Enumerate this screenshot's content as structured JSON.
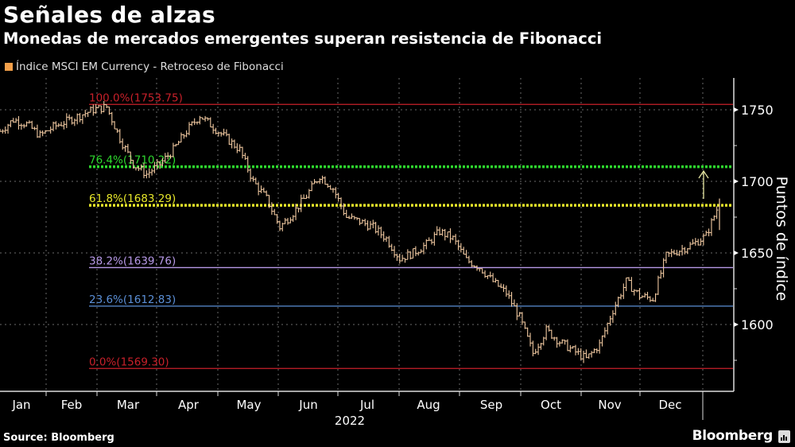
{
  "header": {
    "title": "Señales de alzas",
    "subtitle": "Monedas de mercados emergentes superan resistencia de Fibonacci",
    "legend_label": "Índice MSCI EM Currency - Retroceso de Fibonacci",
    "legend_color": "#f5a04a"
  },
  "footer": {
    "source": "Source: Bloomberg",
    "brand": "Bloomberg"
  },
  "colors": {
    "price": "#f0c8a0",
    "fib_100": "#c8202a",
    "fib_76": "#2ed82e",
    "fib_61": "#e6e62a",
    "fib_38": "#b89ae8",
    "fib_23": "#5b8fd6",
    "fib_0": "#c8202a",
    "arrow": "#e6e6a0",
    "grid": "#6a6a6a"
  },
  "chart_data": {
    "type": "line",
    "title": "Señales de alzas",
    "subtitle": "Monedas de mercados emergentes superan resistencia de Fibonacci",
    "xlabel": "2022",
    "ylabel": "Puntos de índice",
    "ylim": [
      1560,
      1770
    ],
    "yticks": [
      1600,
      1650,
      1700,
      1750
    ],
    "xticks": [
      "Jan",
      "Feb",
      "Mar",
      "Apr",
      "May",
      "Jun",
      "Jul",
      "Aug",
      "Sep",
      "Oct",
      "Nov",
      "Dec"
    ],
    "grid": true,
    "legend_position": "top-left",
    "series": [
      {
        "name": "Índice MSCI EM Currency",
        "x": [
          "Jan 1",
          "Jan 7",
          "Jan 14",
          "Jan 21",
          "Jan 28",
          "Feb 4",
          "Feb 11",
          "Feb 18",
          "Feb 24",
          "Mar 1",
          "Mar 7",
          "Mar 14",
          "Mar 21",
          "Mar 28",
          "Apr 4",
          "Apr 11",
          "Apr 18",
          "Apr 25",
          "May 2",
          "May 9",
          "May 16",
          "May 23",
          "May 30",
          "Jun 6",
          "Jun 13",
          "Jun 20",
          "Jun 27",
          "Jul 4",
          "Jul 11",
          "Jul 18",
          "Jul 25",
          "Aug 1",
          "Aug 8",
          "Aug 15",
          "Aug 22",
          "Aug 29",
          "Sep 5",
          "Sep 12",
          "Sep 19",
          "Sep 26",
          "Oct 3",
          "Oct 10",
          "Oct 17",
          "Oct 24",
          "Oct 31",
          "Nov 7",
          "Nov 10",
          "Nov 14",
          "Nov 21",
          "Nov 28",
          "Dec 5",
          "Dec 12",
          "Dec 19",
          "Dec 26",
          "Dec 30"
        ],
        "values": [
          1735,
          1743,
          1740,
          1732,
          1738,
          1742,
          1746,
          1750,
          1752,
          1730,
          1712,
          1705,
          1712,
          1722,
          1735,
          1746,
          1738,
          1730,
          1722,
          1700,
          1688,
          1668,
          1678,
          1690,
          1704,
          1695,
          1675,
          1672,
          1668,
          1660,
          1646,
          1650,
          1656,
          1665,
          1660,
          1645,
          1640,
          1630,
          1622,
          1605,
          1580,
          1596,
          1588,
          1582,
          1576,
          1586,
          1610,
          1630,
          1620,
          1618,
          1648,
          1652,
          1656,
          1662,
          1685
        ]
      }
    ],
    "fibonacci_levels": [
      {
        "label": "100.0%(1753.75)",
        "pct": 100.0,
        "value": 1753.75
      },
      {
        "label": "76.4%(1710.22)",
        "pct": 76.4,
        "value": 1710.22
      },
      {
        "label": "61.8%(1683.29)",
        "pct": 61.8,
        "value": 1683.29
      },
      {
        "label": "38.2%(1639.76)",
        "pct": 38.2,
        "value": 1639.76
      },
      {
        "label": "23.6%(1612.83)",
        "pct": 23.6,
        "value": 1612.83
      },
      {
        "label": "0.0%(1569.30)",
        "pct": 0.0,
        "value": 1569.3
      }
    ],
    "annotations": [
      "Upward arrow near late December pointing toward 76.4% level"
    ]
  }
}
